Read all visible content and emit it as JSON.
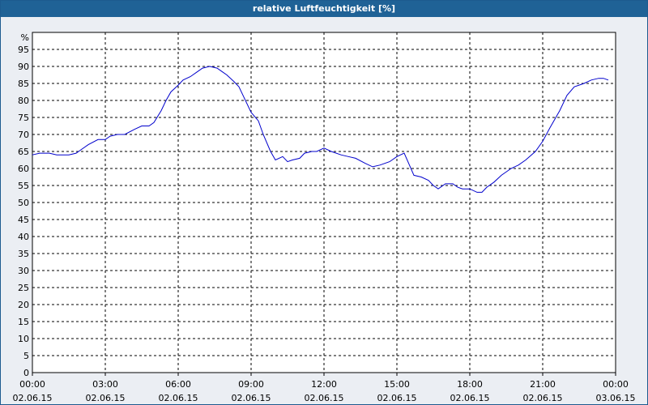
{
  "window": {
    "title": "relative Luftfeuchtigkeit [%]"
  },
  "colors": {
    "titlebar": "#1f6296",
    "background": "#ebeef3",
    "line": "#0000cc",
    "grid": "#000000"
  },
  "chart_data": {
    "type": "line",
    "title": "relative Luftfeuchtigkeit [%]",
    "ylabel": "%",
    "xlabel": "",
    "ylim": [
      0,
      100
    ],
    "yticks": [
      0,
      5,
      10,
      15,
      20,
      25,
      30,
      35,
      40,
      45,
      50,
      55,
      60,
      65,
      70,
      75,
      80,
      85,
      90,
      95
    ],
    "xlim_hours": [
      0,
      24
    ],
    "xticks": [
      {
        "hour": 0,
        "time": "00:00",
        "date": "02.06.15"
      },
      {
        "hour": 3,
        "time": "03:00",
        "date": "02.06.15"
      },
      {
        "hour": 6,
        "time": "06:00",
        "date": "02.06.15"
      },
      {
        "hour": 9,
        "time": "09:00",
        "date": "02.06.15"
      },
      {
        "hour": 12,
        "time": "12:00",
        "date": "02.06.15"
      },
      {
        "hour": 15,
        "time": "15:00",
        "date": "02.06.15"
      },
      {
        "hour": 18,
        "time": "18:00",
        "date": "02.06.15"
      },
      {
        "hour": 21,
        "time": "21:00",
        "date": "02.06.15"
      },
      {
        "hour": 24,
        "time": "00:00",
        "date": "03.06.15"
      }
    ],
    "grid": true,
    "series": [
      {
        "x_hours": [
          0,
          0.3,
          0.7,
          1.0,
          1.2,
          1.5,
          1.8,
          2.0,
          2.3,
          2.7,
          3.0,
          3.2,
          3.5,
          3.8,
          4.2,
          4.5,
          4.8,
          5.0,
          5.3,
          5.5,
          5.7,
          6.0,
          6.2,
          6.5,
          6.8,
          7.0,
          7.3,
          7.6,
          7.8,
          8.0,
          8.3,
          8.5,
          8.7,
          9.0,
          9.3,
          9.5,
          9.8,
          10.0,
          10.3,
          10.5,
          10.7,
          11.0,
          11.2,
          11.5,
          11.7,
          12.0,
          12.3,
          12.7,
          13.0,
          13.3,
          13.7,
          14.0,
          14.3,
          14.7,
          15.0,
          15.3,
          15.7,
          16.0,
          16.3,
          16.5,
          16.7,
          17.0,
          17.3,
          17.5,
          17.7,
          18.0,
          18.3,
          18.5,
          18.7,
          19.0,
          19.3,
          19.7,
          20.0,
          20.3,
          20.7,
          21.0,
          21.3,
          21.7,
          22.0,
          22.3,
          22.7,
          23.0,
          23.3,
          23.5,
          23.7
        ],
        "y": [
          64,
          64.5,
          64.5,
          64,
          64,
          64,
          64.5,
          65.5,
          67,
          68.5,
          68.5,
          69.5,
          70,
          70,
          71.5,
          72.5,
          72.5,
          73.5,
          77,
          80,
          82.5,
          84.5,
          86,
          87,
          88.5,
          89.5,
          90,
          89.5,
          88.5,
          87.5,
          85.5,
          84,
          81,
          76.5,
          74,
          70,
          65,
          62.5,
          63.5,
          62,
          62.5,
          63,
          64.5,
          65,
          65,
          66,
          65,
          64,
          63.5,
          63,
          61.5,
          60.5,
          61,
          62,
          63.5,
          64.5,
          58,
          57.5,
          56.5,
          55,
          54,
          55.5,
          55.5,
          54.5,
          54,
          54,
          53,
          53,
          54.5,
          56,
          58,
          60,
          61,
          62.5,
          65,
          68,
          72,
          77,
          81.5,
          84,
          85,
          86,
          86.5,
          86.5,
          86
        ]
      }
    ]
  }
}
